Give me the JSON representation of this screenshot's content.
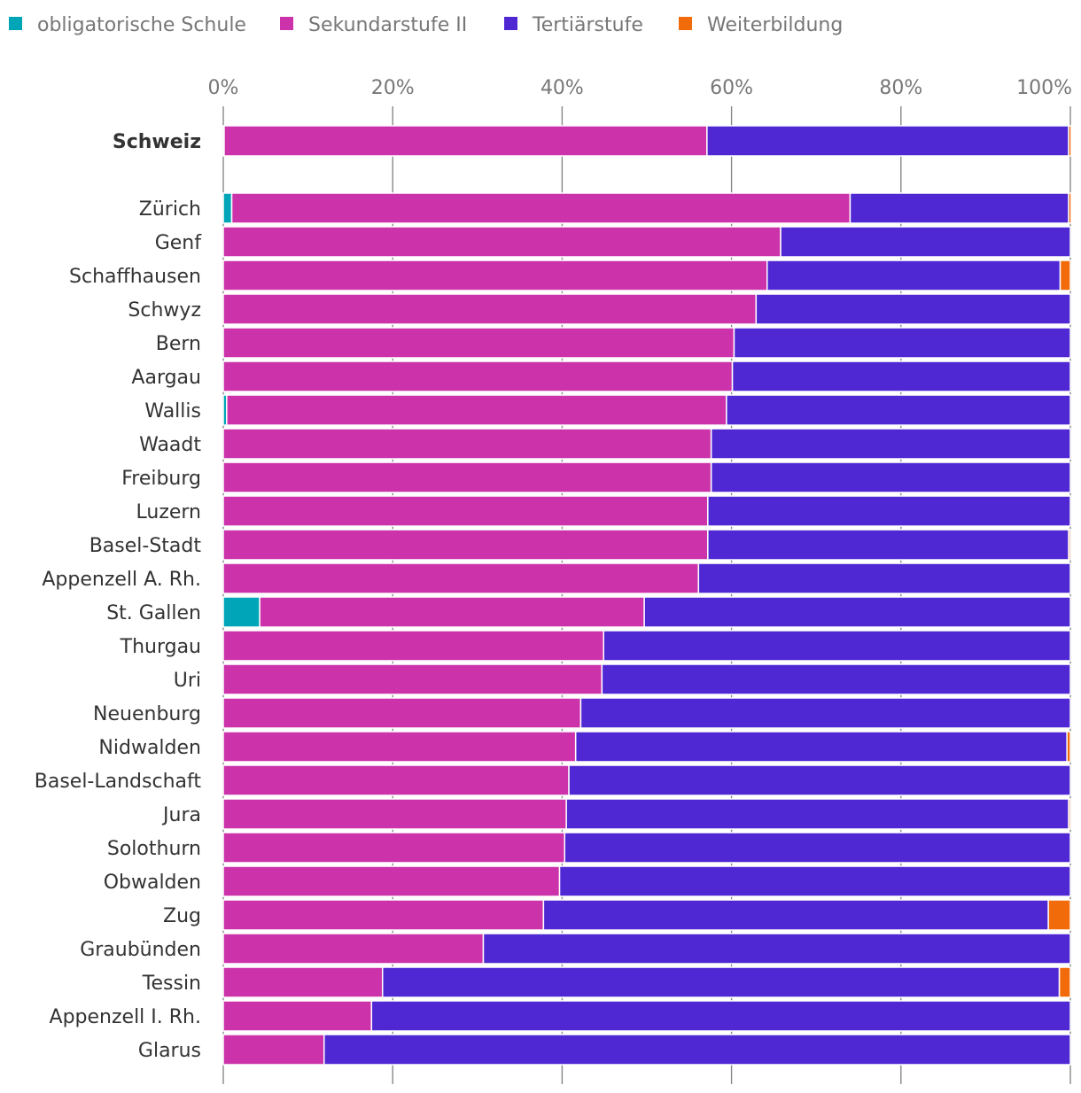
{
  "chart_data": {
    "type": "bar",
    "orientation": "horizontal",
    "stacked": true,
    "title": "",
    "xlabel": "",
    "ylabel": "",
    "xlim": [
      0,
      100
    ],
    "x_ticks": [
      "0%",
      "20%",
      "40%",
      "60%",
      "80%",
      "100%"
    ],
    "tick_position": "top",
    "grid": true,
    "legend_position": "top-left",
    "categories": [
      "Schweiz",
      "Zürich",
      "Genf",
      "Schaffhausen",
      "Schwyz",
      "Bern",
      "Aargau",
      "Wallis",
      "Waadt",
      "Freiburg",
      "Luzern",
      "Basel-Stadt",
      "Appenzell A. Rh.",
      "St. Gallen",
      "Thurgau",
      "Uri",
      "Neuenburg",
      "Nidwalden",
      "Basel-Landschaft",
      "Jura",
      "Solothurn",
      "Obwalden",
      "Zug",
      "Graubünden",
      "Tessin",
      "Appenzell I. Rh.",
      "Glarus"
    ],
    "highlight_category": "Schweiz",
    "series": [
      {
        "name": "obligatorische Schule",
        "color": "#00a6b8",
        "values": [
          0.1,
          1.0,
          0,
          0,
          0,
          0,
          0,
          0.4,
          0,
          0,
          0,
          0,
          0,
          4.3,
          0,
          0,
          0,
          0,
          0,
          0,
          0,
          0,
          0,
          0,
          0,
          0,
          0
        ]
      },
      {
        "name": "Sekundarstufe II",
        "color": "#cc33aa",
        "values": [
          57.0,
          73.0,
          65.8,
          64.2,
          62.9,
          60.3,
          60.1,
          59.0,
          57.6,
          57.6,
          57.2,
          57.2,
          56.1,
          45.4,
          44.9,
          44.7,
          42.2,
          41.6,
          40.8,
          40.5,
          40.3,
          39.7,
          37.8,
          30.7,
          18.8,
          17.5,
          11.9
        ]
      },
      {
        "name": "Tertiärstufe",
        "color": "#4f28d4",
        "values": [
          42.7,
          25.8,
          34.2,
          34.6,
          37.1,
          39.7,
          39.9,
          40.6,
          42.4,
          42.4,
          42.8,
          42.6,
          43.9,
          50.3,
          55.1,
          55.3,
          57.8,
          58.0,
          59.2,
          59.3,
          59.7,
          60.3,
          59.6,
          69.3,
          79.9,
          82.5,
          88.1
        ]
      },
      {
        "name": "Weiterbildung",
        "color": "#f26b0a",
        "values": [
          0.3,
          0.3,
          0,
          1.2,
          0,
          0,
          0,
          0,
          0,
          0,
          0,
          0.2,
          0,
          0,
          0,
          0,
          0,
          0.4,
          0,
          0.2,
          0,
          0,
          2.6,
          0,
          1.3,
          0,
          0
        ]
      }
    ]
  }
}
